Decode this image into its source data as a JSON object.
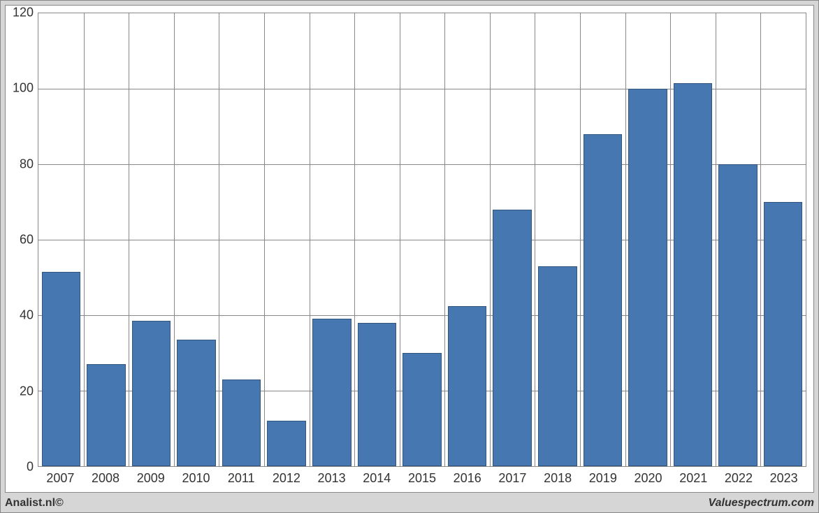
{
  "chart": {
    "type": "bar",
    "categories": [
      "2007",
      "2008",
      "2009",
      "2010",
      "2011",
      "2012",
      "2013",
      "2014",
      "2015",
      "2016",
      "2017",
      "2018",
      "2019",
      "2020",
      "2021",
      "2022",
      "2023"
    ],
    "values": [
      51.5,
      27,
      38.5,
      33.5,
      23,
      12,
      39,
      38,
      30,
      42.5,
      68,
      53,
      88,
      100,
      101.5,
      80,
      70
    ],
    "bar_color": "#4677b0",
    "bar_border_color": "#30557e",
    "ylim": [
      0,
      120
    ],
    "ytick_step": 20,
    "yticks": [
      0,
      20,
      40,
      60,
      80,
      100,
      120
    ],
    "background_color": "#ffffff",
    "outer_background_color": "#d6d6d6",
    "grid_color": "#888888",
    "axis_fontsize": 18,
    "bar_width_ratio": 0.86
  },
  "footer": {
    "left_label": "Analist.nl©",
    "right_label": "Valuespectrum.com"
  }
}
